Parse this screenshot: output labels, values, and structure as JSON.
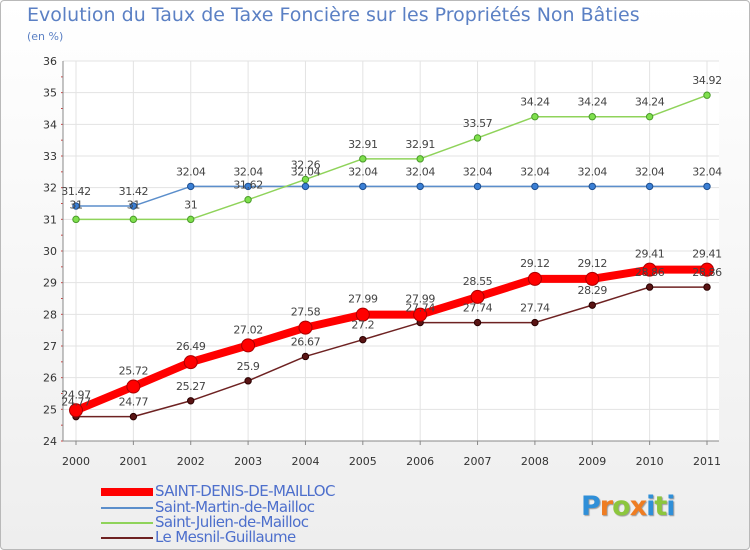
{
  "title": "Evolution du Taux de Taxe Foncière sur les Propriétés Non Bâties",
  "subtitle": "(en %)",
  "logo": {
    "text": "Proxiti",
    "letters": [
      "P",
      "r",
      "o",
      "x",
      "i",
      "t",
      "i"
    ],
    "colors": [
      "#2f8fd8",
      "#ef7d22",
      "#8cc63e",
      "#ef7d22",
      "#2f8fd8",
      "#8cc63e",
      "#2f8fd8"
    ]
  },
  "chart_data": {
    "type": "line",
    "title": "Evolution du Taux de Taxe Foncière sur les Propriétés Non Bâties",
    "ylabel": "(en %)",
    "xlabel": "",
    "x": [
      "2000",
      "2001",
      "2002",
      "2003",
      "2004",
      "2005",
      "2006",
      "2007",
      "2008",
      "2009",
      "2010",
      "2011"
    ],
    "ylim": [
      24,
      36
    ],
    "yticks": [
      "24",
      "25",
      "26",
      "27",
      "28",
      "29",
      "30",
      "31",
      "32",
      "33",
      "34",
      "35",
      "36"
    ],
    "grid": true,
    "legend_position": "bottom-left",
    "series": [
      {
        "name": "SAINT-DENIS-DE-MAILLOC",
        "color": "#ff0000",
        "values": [
          24.97,
          25.72,
          26.49,
          27.02,
          27.58,
          27.99,
          27.99,
          28.55,
          29.12,
          29.12,
          29.41,
          29.41
        ],
        "labels": [
          "24.97",
          "25.72",
          "26.49",
          "27.02",
          "27.58",
          "27.99",
          "27.99",
          "28.55",
          "29.12",
          "29.12",
          "29.41",
          "29.41"
        ]
      },
      {
        "name": "Saint-Martin-de-Mailloc",
        "color": "#5b8ecb",
        "values": [
          31.42,
          31.42,
          32.04,
          32.04,
          32.04,
          32.04,
          32.04,
          32.04,
          32.04,
          32.04,
          32.04,
          32.04
        ],
        "labels": [
          "31.42",
          "31.42",
          "32.04",
          "32.04",
          "32.04",
          "32.04",
          "32.04",
          "32.04",
          "32.04",
          "32.04",
          "32.04",
          "32.04"
        ]
      },
      {
        "name": "Saint-Julien-de-Mailloc",
        "color": "#8fd35a",
        "values": [
          31,
          31,
          31,
          31.62,
          32.26,
          32.91,
          32.91,
          33.57,
          34.24,
          34.24,
          34.24,
          34.92
        ],
        "labels": [
          "31",
          "31",
          "31",
          "31.62",
          "32.26",
          "32.91",
          "32.91",
          "33.57",
          "34.24",
          "34.24",
          "34.24",
          "34.92"
        ]
      },
      {
        "name": "Le Mesnil-Guillaume",
        "color": "#6e2222",
        "values": [
          24.77,
          24.77,
          25.27,
          25.9,
          26.67,
          27.2,
          27.74,
          27.74,
          27.74,
          28.29,
          28.86,
          28.86
        ],
        "labels": [
          "24.77",
          "24.77",
          "25.27",
          "25.9",
          "26.67",
          "27.2",
          "27.74",
          "27.74",
          "27.74",
          "28.29",
          "28.86",
          "28.86"
        ]
      }
    ]
  }
}
